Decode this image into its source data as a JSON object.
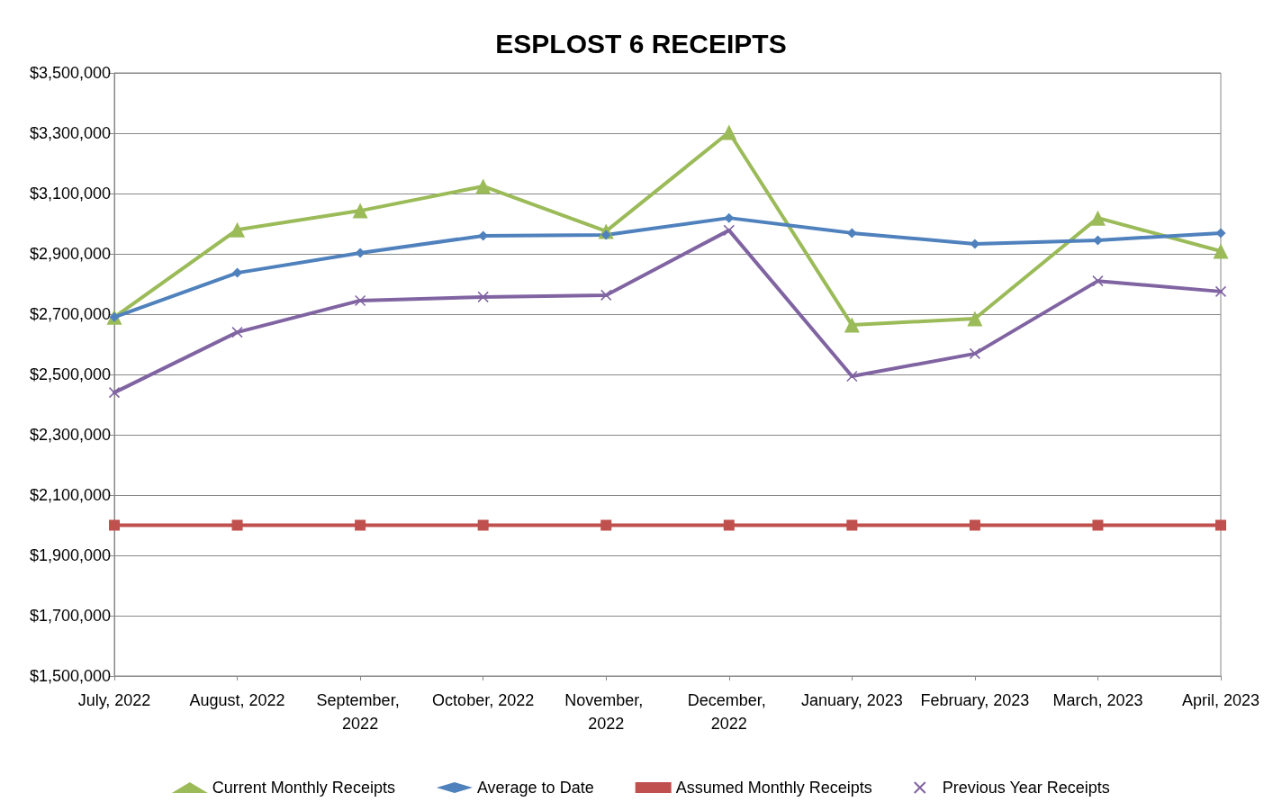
{
  "chart_data": {
    "type": "line",
    "title": "ESPLOST 6 RECEIPTS",
    "categories": [
      "July, 2022",
      "August, 2022",
      "September, 2022",
      "October, 2022",
      "November, 2022",
      "December, 2022",
      "January, 2023",
      "February, 2023",
      "March, 2023",
      "April, 2023"
    ],
    "series": [
      {
        "name": "Current Monthly Receipts",
        "color": "#9bbb59",
        "marker": "triangle",
        "values": [
          2690000,
          2980000,
          3043000,
          3124000,
          2975000,
          3303000,
          2664000,
          2685000,
          3019000,
          2909000
        ]
      },
      {
        "name": "Average to Date",
        "color": "#4f81bd",
        "marker": "diamond",
        "values": [
          2690000,
          2837000,
          2903000,
          2960000,
          2963000,
          3019000,
          2969000,
          2933000,
          2945000,
          2969000
        ]
      },
      {
        "name": "Assumed Monthly Receipts",
        "color": "#c0504d",
        "marker": "square",
        "values": [
          2000000,
          2000000,
          2000000,
          2000000,
          2000000,
          2000000,
          2000000,
          2000000,
          2000000,
          2000000
        ]
      },
      {
        "name": "Previous Year Receipts",
        "color": "#8064a2",
        "marker": "cross",
        "values": [
          2440000,
          2640000,
          2745000,
          2757000,
          2763000,
          2978000,
          2494000,
          2569000,
          2810000,
          2775000
        ]
      }
    ],
    "ylim": [
      1500000,
      3500000
    ],
    "yticks": [
      {
        "value": 1500000,
        "label": "$1,500,000"
      },
      {
        "value": 1700000,
        "label": "$1,700,000"
      },
      {
        "value": 1900000,
        "label": "$1,900,000"
      },
      {
        "value": 2100000,
        "label": "$2,100,000"
      },
      {
        "value": 2300000,
        "label": "$2,300,000"
      },
      {
        "value": 2500000,
        "label": "$2,500,000"
      },
      {
        "value": 2700000,
        "label": "$2,700,000"
      },
      {
        "value": 2900000,
        "label": "$2,900,000"
      },
      {
        "value": 3100000,
        "label": "$3,100,000"
      },
      {
        "value": 3300000,
        "label": "$3,300,000"
      },
      {
        "value": 3500000,
        "label": "$3,500,000"
      }
    ],
    "grid": "y",
    "legend": "bottom",
    "line_style": "solid"
  }
}
